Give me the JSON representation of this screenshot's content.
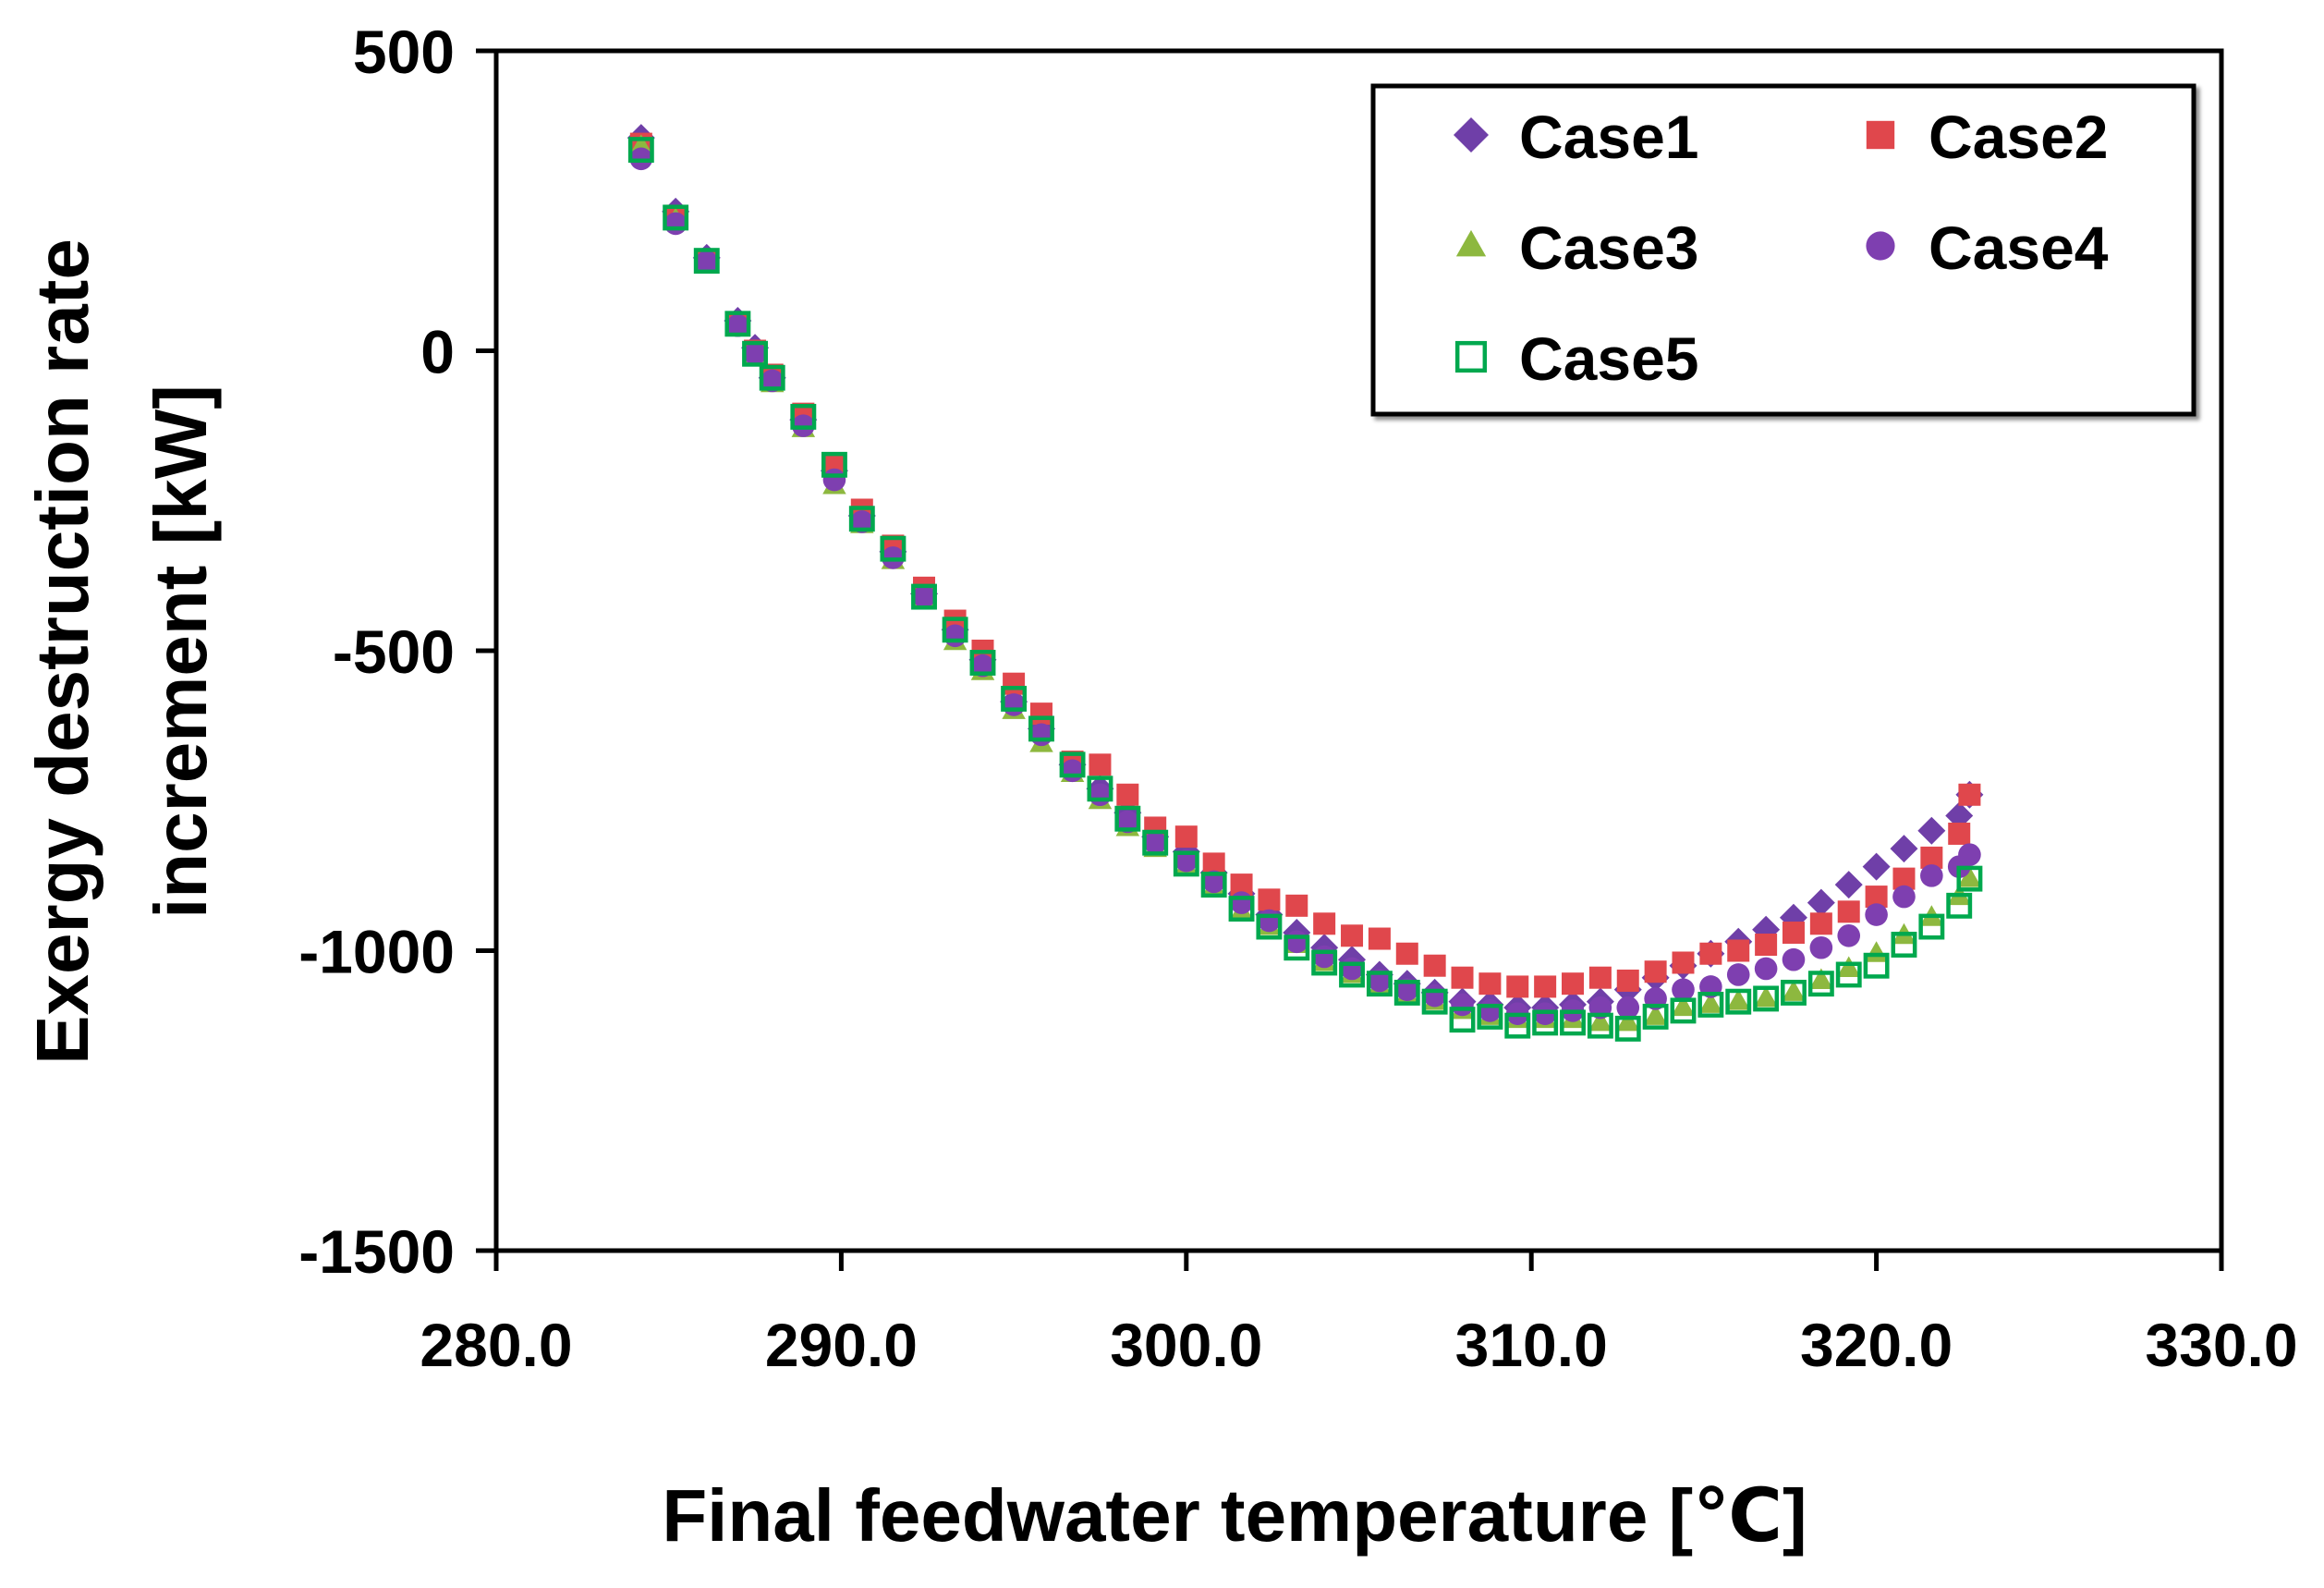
{
  "chart_data": {
    "type": "scatter",
    "xlabel": "Final feedwater temperature [℃]",
    "ylabel_line1": "Exergy destruction rate",
    "ylabel_line2": "increment  [kW]",
    "xlim": [
      280,
      330
    ],
    "ylim": [
      -1500,
      500
    ],
    "xticks": [
      280,
      290,
      300,
      310,
      320,
      330
    ],
    "xtick_labels": [
      "280.0",
      "290.0",
      "300.0",
      "310.0",
      "320.0",
      "330.0"
    ],
    "yticks": [
      -1500,
      -1000,
      -500,
      0,
      500
    ],
    "ytick_labels": [
      "-1500",
      "-1000",
      "-500",
      "0",
      "500"
    ],
    "legend_position": "top-right",
    "x": [
      284.2,
      285.2,
      286.1,
      287.0,
      287.5,
      288.0,
      288.9,
      289.8,
      290.6,
      291.5,
      292.4,
      293.3,
      294.1,
      295.0,
      295.8,
      296.7,
      297.5,
      298.3,
      299.1,
      300.0,
      300.8,
      301.6,
      302.4,
      303.2,
      304.0,
      304.8,
      305.6,
      306.4,
      307.2,
      308.0,
      308.8,
      309.6,
      310.4,
      311.2,
      312.0,
      312.8,
      313.6,
      314.4,
      315.2,
      316.0,
      316.8,
      317.6,
      318.4,
      319.2,
      320.0,
      320.8,
      321.6,
      322.4,
      322.7
    ],
    "series": [
      {
        "name": "Case1",
        "marker": "diamond",
        "color": "#6F3FA8",
        "values": [
          355,
          232,
          155,
          50,
          5,
          -45,
          -115,
          -200,
          -275,
          -335,
          -405,
          -465,
          -515,
          -585,
          -630,
          -690,
          -730,
          -770,
          -810,
          -835,
          -870,
          -905,
          -940,
          -970,
          -995,
          -1015,
          -1040,
          -1055,
          -1070,
          -1085,
          -1090,
          -1095,
          -1095,
          -1090,
          -1085,
          -1065,
          -1045,
          -1025,
          -1005,
          -985,
          -965,
          -945,
          -920,
          -890,
          -860,
          -830,
          -800,
          -775,
          -740
        ]
      },
      {
        "name": "Case2",
        "marker": "square",
        "color": "#E0474C",
        "values": [
          345,
          225,
          150,
          45,
          0,
          -40,
          -105,
          -190,
          -265,
          -325,
          -395,
          -450,
          -500,
          -555,
          -605,
          -685,
          -690,
          -740,
          -795,
          -810,
          -855,
          -890,
          -915,
          -925,
          -955,
          -975,
          -980,
          -1005,
          -1025,
          -1045,
          -1055,
          -1060,
          -1060,
          -1055,
          -1045,
          -1050,
          -1035,
          -1020,
          -1005,
          -1000,
          -990,
          -970,
          -955,
          -935,
          -910,
          -880,
          -845,
          -805,
          -740
        ]
      },
      {
        "name": "Case3",
        "marker": "triangle",
        "color": "#8DB83F",
        "values": [
          340,
          218,
          145,
          40,
          -10,
          -55,
          -130,
          -225,
          -290,
          -350,
          -415,
          -485,
          -535,
          -600,
          -655,
          -705,
          -750,
          -795,
          -830,
          -860,
          -895,
          -935,
          -960,
          -990,
          -1020,
          -1040,
          -1060,
          -1075,
          -1085,
          -1100,
          -1110,
          -1115,
          -1115,
          -1115,
          -1120,
          -1120,
          -1110,
          -1095,
          -1090,
          -1085,
          -1080,
          -1070,
          -1050,
          -1030,
          -1005,
          -975,
          -945,
          -910,
          -880
        ]
      },
      {
        "name": "Case4",
        "marker": "circle",
        "color": "#7E3FB0",
        "values": [
          320,
          212,
          148,
          42,
          -5,
          -50,
          -125,
          -215,
          -285,
          -345,
          -410,
          -475,
          -525,
          -590,
          -640,
          -700,
          -740,
          -785,
          -820,
          -850,
          -885,
          -920,
          -950,
          -985,
          -1010,
          -1030,
          -1050,
          -1065,
          -1075,
          -1090,
          -1100,
          -1105,
          -1105,
          -1100,
          -1095,
          -1095,
          -1080,
          -1065,
          -1060,
          -1040,
          -1030,
          -1015,
          -995,
          -975,
          -940,
          -910,
          -875,
          -860,
          -840
        ]
      },
      {
        "name": "Case5",
        "marker": "open-square",
        "color": "#00A84E",
        "values": [
          335,
          222,
          150,
          45,
          -5,
          -45,
          -110,
          -190,
          -280,
          -330,
          -410,
          -465,
          -520,
          -580,
          -630,
          -690,
          -730,
          -780,
          -820,
          -855,
          -890,
          -930,
          -960,
          -995,
          -1020,
          -1040,
          -1055,
          -1070,
          -1085,
          -1115,
          -1110,
          -1125,
          -1120,
          -1120,
          -1125,
          -1130,
          -1110,
          -1100,
          -1090,
          -1085,
          -1080,
          -1070,
          -1055,
          -1040,
          -1025,
          -990,
          -960,
          -925,
          -880
        ]
      }
    ]
  }
}
